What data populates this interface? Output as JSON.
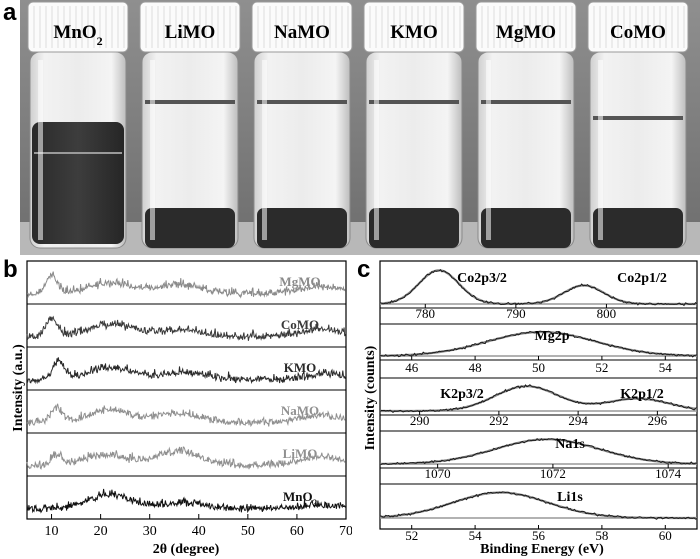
{
  "panels": {
    "a": "a",
    "b": "b",
    "c": "c"
  },
  "photo": {
    "vials": [
      {
        "label": "MnO",
        "sub": "2",
        "state": "dispersed"
      },
      {
        "label": "LiMO",
        "state": "settled"
      },
      {
        "label": "NaMO",
        "state": "settled"
      },
      {
        "label": "KMO",
        "state": "settled"
      },
      {
        "label": "MgMO",
        "state": "settled"
      },
      {
        "label": "CoMO",
        "state": "settled"
      }
    ]
  },
  "chart_data": [
    {
      "type": "line",
      "panel": "b",
      "xlabel": "2θ (degree)",
      "ylabel": "Intensity (a.u.)",
      "xlim": [
        5,
        70
      ],
      "xticks": [
        "10",
        "20",
        "30",
        "40",
        "50",
        "60",
        "70"
      ],
      "series": [
        {
          "name": "MgMO",
          "color": "#8a8a8a",
          "peaks": [
            [
              10,
              1.0
            ],
            [
              22,
              0.6
            ],
            [
              36,
              0.5
            ],
            [
              65,
              0.4
            ]
          ]
        },
        {
          "name": "CoMO",
          "color": "#3a3a3a",
          "peaks": [
            [
              10,
              1.0
            ],
            [
              22,
              0.7
            ],
            [
              36,
              0.4
            ],
            [
              65,
              0.4
            ]
          ]
        },
        {
          "name": "KMO",
          "color": "#2a2a2a",
          "peaks": [
            [
              11.5,
              1.0
            ],
            [
              22,
              0.7
            ],
            [
              37,
              0.4
            ],
            [
              66,
              0.3
            ]
          ]
        },
        {
          "name": "NaMO",
          "color": "#909090",
          "peaks": [
            [
              11,
              0.8
            ],
            [
              22,
              0.7
            ],
            [
              36,
              0.5
            ],
            [
              65,
              0.4
            ]
          ]
        },
        {
          "name": "LiMO",
          "color": "#909090",
          "peaks": [
            [
              11,
              0.5
            ],
            [
              21,
              0.6
            ],
            [
              36,
              0.8
            ],
            [
              65,
              0.5
            ]
          ]
        },
        {
          "name": "MnO",
          "name_sub": "2",
          "color": "#111111",
          "peaks": [
            [
              22,
              0.8
            ],
            [
              37,
              0.3
            ],
            [
              65,
              0.2
            ]
          ]
        }
      ]
    },
    {
      "type": "line",
      "panel": "c",
      "xlabel": "Binding Energy (eV)",
      "ylabel": "Intensity (counts)",
      "subplots": [
        {
          "id": "co",
          "xlim": [
            775,
            810
          ],
          "xticks": [
            "780",
            "790",
            "800"
          ],
          "annotations": [
            "Co2p3/2",
            "Co2p1/2"
          ],
          "peaks": [
            [
              781.5,
              1.0,
              2.2
            ],
            [
              797.5,
              0.55,
              2.2
            ]
          ]
        },
        {
          "id": "mg",
          "xlim": [
            45,
            55
          ],
          "xticks": [
            "46",
            "48",
            "50",
            "52",
            "54"
          ],
          "annotations": [
            "Mg2p"
          ],
          "peaks": [
            [
              50.1,
              1.0,
              1.7
            ]
          ]
        },
        {
          "id": "k",
          "xlim": [
            289,
            297
          ],
          "xticks": [
            "290",
            "292",
            "294",
            "296"
          ],
          "annotations": [
            "K2p3/2",
            "K2p1/2"
          ],
          "peaks": [
            [
              292.7,
              1.0,
              0.8
            ],
            [
              295.5,
              0.5,
              0.8
            ]
          ]
        },
        {
          "id": "na",
          "xlim": [
            1069,
            1074.5
          ],
          "xticks": [
            "1070",
            "1072",
            "1074"
          ],
          "annotations": [
            "Na1s"
          ],
          "peaks": [
            [
              1071.9,
              1.0,
              0.9
            ]
          ]
        },
        {
          "id": "li",
          "xlim": [
            51,
            61
          ],
          "xticks": [
            "52",
            "54",
            "56",
            "58",
            "60"
          ],
          "annotations": [
            "Li1s"
          ],
          "peaks": [
            [
              54.8,
              1.0,
              1.5
            ]
          ]
        }
      ]
    }
  ]
}
